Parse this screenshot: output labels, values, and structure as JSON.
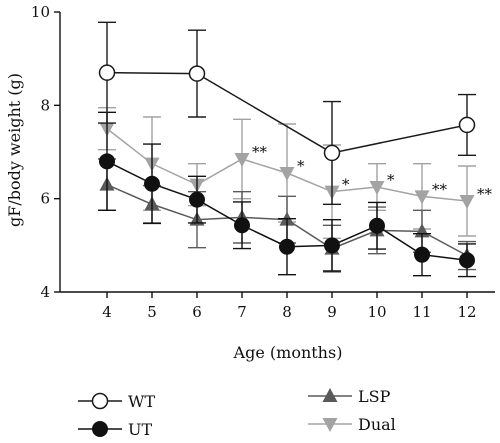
{
  "chart_data": {
    "type": "line",
    "title": "",
    "xlabel": "Age (months)",
    "ylabel": "gF/body weight (g)",
    "x": [
      4,
      5,
      6,
      7,
      8,
      9,
      10,
      11,
      12
    ],
    "xlim": [
      3.5,
      12.5
    ],
    "ylim": [
      4,
      10
    ],
    "yticks": [
      4,
      6,
      8,
      10
    ],
    "grid": false,
    "legend_position": "bottom",
    "series": [
      {
        "name": "WT",
        "marker": "circle-open",
        "color": "#1a1a1a",
        "x": [
          4,
          6,
          9,
          12
        ],
        "y": [
          8.7,
          8.68,
          6.98,
          7.58
        ],
        "err": [
          1.08,
          0.93,
          1.1,
          0.65
        ]
      },
      {
        "name": "UT",
        "marker": "circle-filled",
        "color": "#111111",
        "x": [
          4,
          5,
          6,
          7,
          8,
          9,
          10,
          11,
          12
        ],
        "y": [
          6.8,
          6.32,
          5.98,
          5.43,
          4.97,
          5.0,
          5.42,
          4.8,
          4.68
        ],
        "err": [
          1.05,
          0.85,
          0.5,
          0.5,
          0.6,
          0.55,
          0.5,
          0.45,
          0.35
        ]
      },
      {
        "name": "LSP",
        "marker": "triangle-up",
        "color": "#5a5a5a",
        "x": [
          4,
          5,
          6,
          7,
          8,
          9,
          10,
          11,
          12
        ],
        "y": [
          6.3,
          5.88,
          5.55,
          5.6,
          5.55,
          4.93,
          5.32,
          5.3,
          4.78
        ],
        "err": [
          0.55,
          0.4,
          0.6,
          0.55,
          0.5,
          0.5,
          0.5,
          0.45,
          0.3
        ]
      },
      {
        "name": "Dual",
        "marker": "triangle-down",
        "color": "#a3a3a3",
        "x": [
          4,
          5,
          6,
          7,
          8,
          9,
          10,
          11,
          12
        ],
        "y": [
          7.5,
          6.75,
          6.3,
          6.85,
          6.55,
          6.15,
          6.25,
          6.05,
          5.95
        ],
        "err": [
          0.45,
          1.0,
          0.45,
          0.85,
          1.05,
          1.0,
          0.5,
          0.7,
          0.75
        ]
      }
    ],
    "annotations": [
      {
        "x": 7,
        "text": "**"
      },
      {
        "x": 8,
        "text": "*"
      },
      {
        "x": 9,
        "text": "*"
      },
      {
        "x": 10,
        "text": "*"
      },
      {
        "x": 11,
        "text": "**"
      },
      {
        "x": 12,
        "text": "**"
      }
    ]
  }
}
